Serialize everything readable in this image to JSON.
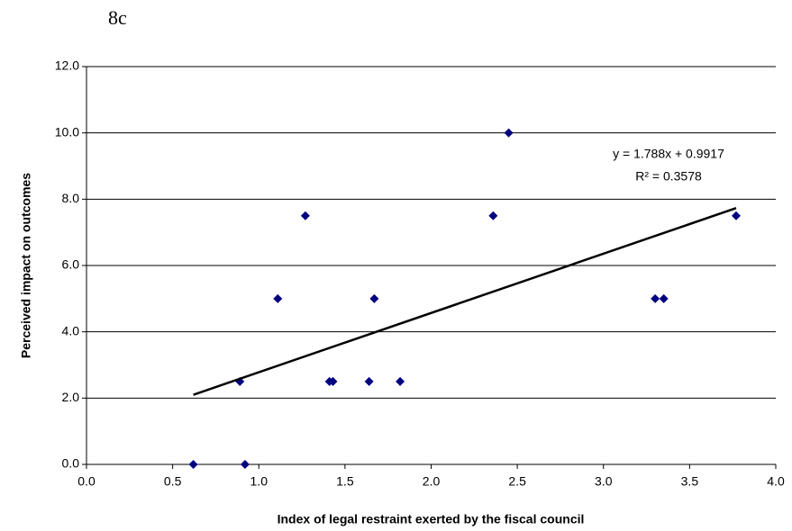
{
  "chart_data": {
    "type": "scatter",
    "title": "8c",
    "x_label": "Index of legal restraint exerted by the fiscal council",
    "y_label": "Perceived impact on outcomes",
    "x": [
      0.62,
      0.92,
      0.89,
      1.11,
      1.27,
      1.41,
      1.43,
      1.64,
      1.67,
      1.82,
      2.36,
      2.45,
      3.3,
      3.35,
      3.77
    ],
    "values": [
      0,
      0,
      2.5,
      5,
      7.5,
      2.5,
      2.5,
      2.5,
      5,
      2.5,
      7.5,
      10,
      5,
      5,
      7.5
    ],
    "color": "#000080",
    "xlim": [
      0,
      4
    ],
    "ylim": [
      0,
      12
    ],
    "xticks": [
      {
        "value": 0,
        "label": "0.0"
      },
      {
        "value": 0.5,
        "label": "0.5"
      },
      {
        "value": 1,
        "label": "1.0"
      },
      {
        "value": 1.5,
        "label": "1.5"
      },
      {
        "value": 2,
        "label": "2.0"
      },
      {
        "value": 2.5,
        "label": "2.5"
      },
      {
        "value": 3,
        "label": "3.0"
      },
      {
        "value": 3.5,
        "label": "3.5"
      },
      {
        "value": 4,
        "label": "4.0"
      }
    ],
    "yticks": [
      {
        "value": 0,
        "label": "0.0"
      },
      {
        "value": 2,
        "label": "2.0"
      },
      {
        "value": 4,
        "label": "4.0"
      },
      {
        "value": 6,
        "label": "6.0"
      },
      {
        "value": 8,
        "label": "8.0"
      },
      {
        "value": 10,
        "label": "10.0"
      },
      {
        "value": 12,
        "label": "12.0"
      }
    ],
    "grid": true,
    "trendline": {
      "slope": 1.788,
      "intercept": 0.9917,
      "equation": "y = 1.788x + 0.9917",
      "r_squared": {
        "value": 0.3578,
        "label": "R² = 0.3578"
      },
      "color": "#000000"
    }
  }
}
